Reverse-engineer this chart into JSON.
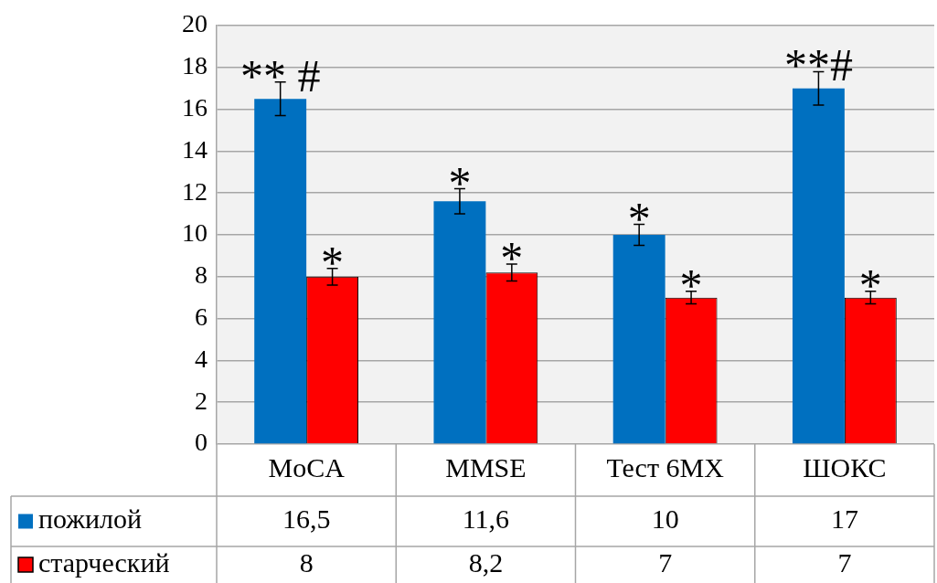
{
  "chart_data": {
    "type": "bar",
    "categories": [
      "MoCA",
      "MMSE",
      "Тест 6МХ",
      "ШОКС"
    ],
    "series": [
      {
        "name": "пожилой",
        "color": "#0070c0",
        "values": [
          16.5,
          11.6,
          10,
          17
        ],
        "errors": [
          0.8,
          0.6,
          0.5,
          0.8
        ],
        "value_labels": [
          "16,5",
          "11,6",
          "10",
          "17"
        ]
      },
      {
        "name": "старческий",
        "color": "#ff0000",
        "values": [
          8,
          8.2,
          7,
          7
        ],
        "errors": [
          0.4,
          0.4,
          0.3,
          0.3
        ],
        "value_labels": [
          "8",
          "8,2",
          "7",
          "7"
        ]
      }
    ],
    "ylim": [
      0,
      20
    ],
    "yticks": [
      0,
      2,
      4,
      6,
      8,
      10,
      12,
      14,
      16,
      18,
      20
    ],
    "grid": "y",
    "legend": "bottom",
    "annotations": [
      {
        "text": "** #",
        "x": "MoCA",
        "y": 16.5
      },
      {
        "text": "*",
        "x": "MoCA",
        "y": 8
      },
      {
        "text": "*",
        "x": "MMSE",
        "y": 11.6
      },
      {
        "text": "*",
        "x": "MMSE",
        "y": 8.2
      },
      {
        "text": "*",
        "x": "Тест 6МХ",
        "y": 10
      },
      {
        "text": "*",
        "x": "Тест 6МХ",
        "y": 7
      },
      {
        "text": "**#",
        "x": "ШОКС",
        "y": 17
      },
      {
        "text": "*",
        "x": "ШОКС",
        "y": 7
      }
    ]
  }
}
